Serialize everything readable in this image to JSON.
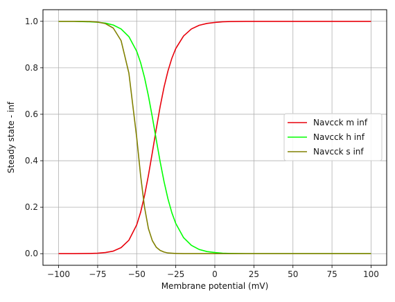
{
  "chart_data": {
    "type": "line",
    "title": "",
    "xlabel": "Membrane potential (mV)",
    "ylabel": "Steady state - inf",
    "xlim": [
      -110,
      110
    ],
    "ylim": [
      -0.05,
      1.05
    ],
    "xticks": [
      -100,
      -75,
      -50,
      -25,
      0,
      25,
      50,
      75,
      100
    ],
    "xtick_labels": [
      "−100",
      "−75",
      "−50",
      "−25",
      "0",
      "25",
      "50",
      "75",
      "100"
    ],
    "yticks": [
      0.0,
      0.2,
      0.4,
      0.6,
      0.8,
      1.0
    ],
    "ytick_labels": [
      "0.0",
      "0.2",
      "0.4",
      "0.6",
      "0.8",
      "1.0"
    ],
    "grid": true,
    "legend": "center-right",
    "x": [
      -100,
      -90,
      -80,
      -75,
      -70,
      -65,
      -60,
      -55,
      -50,
      -47.5,
      -45,
      -42.5,
      -40,
      -37.5,
      -35,
      -32.5,
      -30,
      -27.5,
      -25,
      -20,
      -15,
      -10,
      -5,
      0,
      5,
      10,
      20,
      30,
      40,
      50,
      60,
      70,
      80,
      90,
      100
    ],
    "series": [
      {
        "name": "Navcck m inf",
        "color": "#e8000b",
        "values": [
          0.0,
          0.0,
          0.001,
          0.002,
          0.005,
          0.011,
          0.026,
          0.058,
          0.124,
          0.178,
          0.25,
          0.337,
          0.435,
          0.536,
          0.633,
          0.717,
          0.786,
          0.841,
          0.883,
          0.937,
          0.967,
          0.983,
          0.991,
          0.995,
          0.998,
          0.999,
          1.0,
          1.0,
          1.0,
          1.0,
          1.0,
          1.0,
          1.0,
          1.0,
          1.0
        ]
      },
      {
        "name": "Navcck h inf",
        "color": "#00ff00",
        "values": [
          1.0,
          1.0,
          0.998,
          0.996,
          0.992,
          0.984,
          0.967,
          0.934,
          0.871,
          0.822,
          0.758,
          0.679,
          0.588,
          0.491,
          0.396,
          0.31,
          0.236,
          0.176,
          0.13,
          0.069,
          0.036,
          0.018,
          0.009,
          0.005,
          0.002,
          0.001,
          0.0,
          0.0,
          0.0,
          0.0,
          0.0,
          0.0,
          0.0,
          0.0,
          0.0
        ]
      },
      {
        "name": "Navcck s inf",
        "color": "#808000",
        "values": [
          1.0,
          1.0,
          0.999,
          0.997,
          0.99,
          0.971,
          0.917,
          0.777,
          0.5,
          0.336,
          0.2,
          0.108,
          0.056,
          0.028,
          0.014,
          0.007,
          0.003,
          0.002,
          0.001,
          0.0,
          0.0,
          0.0,
          0.0,
          0.0,
          0.0,
          0.0,
          0.0,
          0.0,
          0.0,
          0.0,
          0.0,
          0.0,
          0.0,
          0.0,
          0.0
        ]
      }
    ]
  }
}
